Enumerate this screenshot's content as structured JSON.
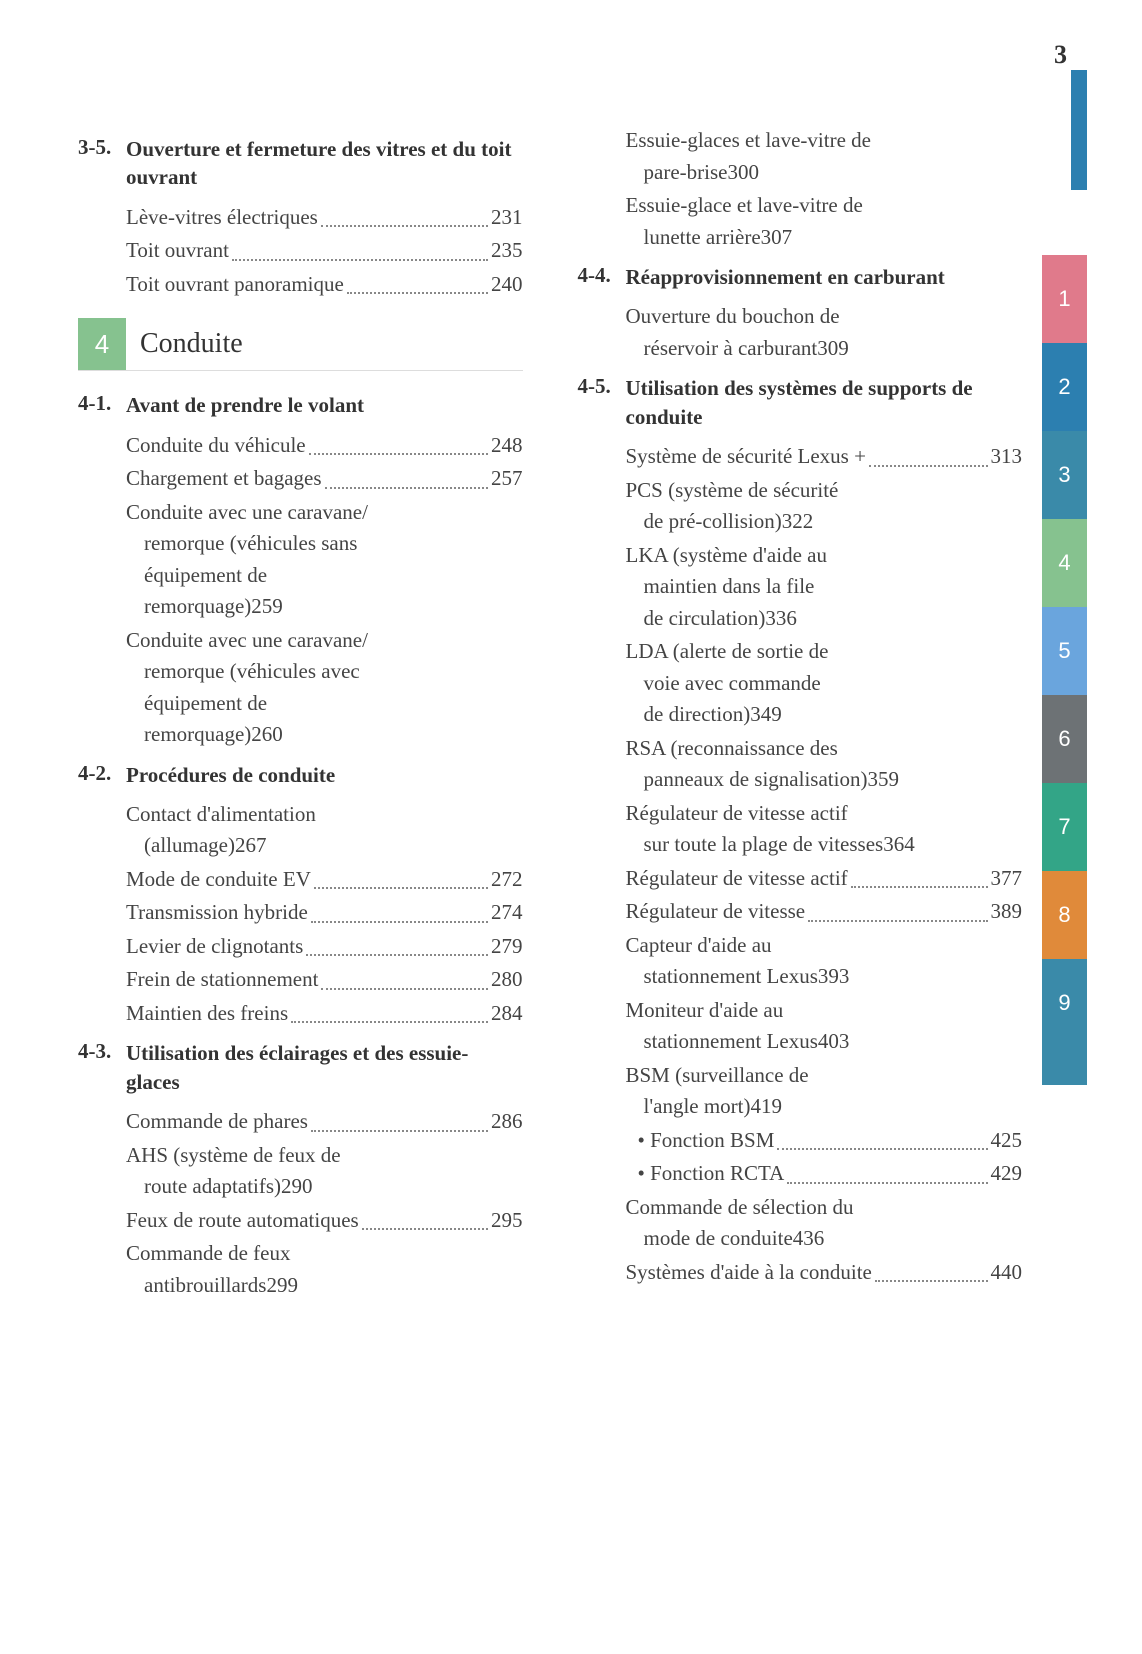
{
  "page_number": "3",
  "chapter": {
    "number": "4",
    "title": "Conduite"
  },
  "tabs": [
    {
      "label": "1",
      "color": "#e07a8b"
    },
    {
      "label": "2",
      "color": "#2c7fb0"
    },
    {
      "label": "3",
      "color": "#3a8aa9"
    },
    {
      "label": "4",
      "color": "#86c28f"
    },
    {
      "label": "5",
      "color": "#6aa5dd"
    },
    {
      "label": "6",
      "color": "#6d7275"
    },
    {
      "label": "7",
      "color": "#33a587"
    },
    {
      "label": "8",
      "color": "#e08a3a"
    },
    {
      "label": "9",
      "color": "#3a8aa9"
    }
  ],
  "tab_blank_color": "#3a8aa9",
  "sections_left": [
    {
      "num": "3-5.",
      "title": "Ouverture et fermeture des vitres et du toit ouvrant",
      "entries": [
        {
          "label": "Lève-vitres électriques",
          "page": "231"
        },
        {
          "label": "Toit ouvrant",
          "page": "235"
        },
        {
          "label": "Toit ouvrant panoramique",
          "page": "240"
        }
      ]
    }
  ],
  "sections_left2": [
    {
      "num": "4-1.",
      "title": "Avant de prendre le volant",
      "entries": [
        {
          "label": "Conduite du véhicule",
          "page": "248"
        },
        {
          "label": "Chargement et bagages",
          "page": "257"
        },
        {
          "label_lines": [
            "Conduite avec une caravane/",
            "remorque (véhicules sans",
            "équipement de",
            "remorquage)"
          ],
          "page": "259"
        },
        {
          "label_lines": [
            "Conduite avec une caravane/",
            "remorque (véhicules avec",
            "équipement de",
            "remorquage)"
          ],
          "page": "260"
        }
      ]
    },
    {
      "num": "4-2.",
      "title": "Procédures de conduite",
      "entries": [
        {
          "label_lines": [
            "Contact d'alimentation",
            "(allumage)"
          ],
          "page": "267"
        },
        {
          "label": "Mode de conduite EV",
          "page": "272"
        },
        {
          "label": "Transmission hybride",
          "page": "274"
        },
        {
          "label": "Levier de clignotants",
          "page": "279"
        },
        {
          "label": "Frein de stationnement",
          "page": "280"
        },
        {
          "label": "Maintien des freins",
          "page": "284"
        }
      ]
    },
    {
      "num": "4-3.",
      "title": "Utilisation des éclairages et des essuie-glaces",
      "entries": [
        {
          "label": "Commande de phares",
          "page": "286"
        },
        {
          "label_lines": [
            "AHS (système de feux de",
            "route adaptatifs)"
          ],
          "page": "290"
        },
        {
          "label": "Feux de route automatiques",
          "page": "295"
        },
        {
          "label_lines": [
            "Commande de feux",
            "antibrouillards"
          ],
          "page": "299"
        }
      ]
    }
  ],
  "sections_right_pre": {
    "entries": [
      {
        "label_lines": [
          "Essuie-glaces et lave-vitre de",
          "pare-brise"
        ],
        "page": "300"
      },
      {
        "label_lines": [
          "Essuie-glace et lave-vitre de",
          "lunette arrière"
        ],
        "page": "307"
      }
    ]
  },
  "sections_right": [
    {
      "num": "4-4.",
      "title": "Réapprovisionnement en carburant",
      "entries": [
        {
          "label_lines": [
            "Ouverture du bouchon de",
            "réservoir à carburant"
          ],
          "page": "309"
        }
      ]
    },
    {
      "num": "4-5.",
      "title": "Utilisation des systèmes de supports de conduite",
      "entries": [
        {
          "label": "Système de sécurité Lexus +",
          "page": "313"
        },
        {
          "label_lines": [
            "PCS (système de sécurité",
            "de pré-collision)"
          ],
          "page": "322"
        },
        {
          "label_lines": [
            "LKA (système d'aide au",
            "maintien dans la file",
            "de circulation)"
          ],
          "page": "336"
        },
        {
          "label_lines": [
            "LDA (alerte de sortie de",
            "voie avec commande",
            "de direction)"
          ],
          "page": "349"
        },
        {
          "label_lines": [
            "RSA (reconnaissance des",
            "panneaux de signalisation)"
          ],
          "page": "359"
        },
        {
          "label_lines": [
            "Régulateur de vitesse actif",
            "sur toute la plage de vitesses"
          ],
          "page": "364"
        },
        {
          "label": "Régulateur de vitesse actif",
          "page": "377"
        },
        {
          "label": "Régulateur de vitesse",
          "page": "389"
        },
        {
          "label_lines": [
            "Capteur d'aide au",
            "stationnement Lexus"
          ],
          "page": "393"
        },
        {
          "label_lines": [
            "Moniteur d'aide au",
            "stationnement Lexus"
          ],
          "page": "403"
        },
        {
          "label_lines": [
            "BSM (surveillance de",
            "l'angle mort)"
          ],
          "page": "419"
        },
        {
          "label": "• Fonction BSM",
          "page": "425",
          "bullet": true
        },
        {
          "label": "• Fonction RCTA",
          "page": "429",
          "bullet": true
        },
        {
          "label_lines": [
            "Commande de sélection du",
            "mode de conduite"
          ],
          "page": "436"
        },
        {
          "label": "Systèmes d'aide à la conduite",
          "page": "440"
        }
      ]
    }
  ]
}
